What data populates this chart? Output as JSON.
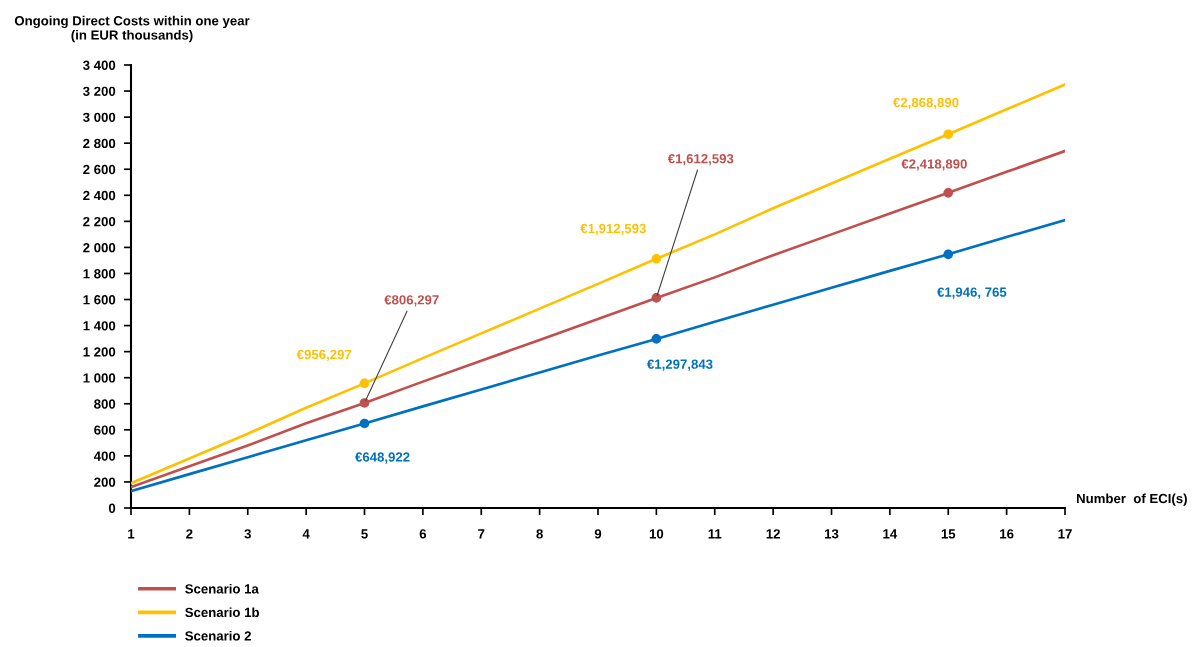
{
  "chart_data": {
    "type": "line",
    "ylabel": "Ongoing Direct Costs within one year\n(in EUR thousands)",
    "xlabel": "Number  of ECI(s)",
    "x": [
      1,
      2,
      3,
      4,
      5,
      6,
      7,
      8,
      9,
      10,
      11,
      12,
      13,
      14,
      15,
      16,
      17
    ],
    "xlim": [
      1,
      17
    ],
    "xticks": [
      1,
      2,
      3,
      4,
      5,
      6,
      7,
      8,
      9,
      10,
      11,
      12,
      13,
      14,
      15,
      16,
      17
    ],
    "ylim": [
      0,
      3400
    ],
    "yticks": [
      0,
      200,
      400,
      600,
      800,
      {
        "value": 1000,
        "label": "1 000"
      },
      {
        "value": 1200,
        "label": "1 200"
      },
      {
        "value": 1400,
        "label": "1 400"
      },
      {
        "value": 1600,
        "label": "1 600"
      },
      {
        "value": 1800,
        "label": "1 800"
      },
      {
        "value": 2000,
        "label": "2 000"
      },
      {
        "value": 2200,
        "label": "2 200"
      },
      {
        "value": 2400,
        "label": "2 400"
      },
      {
        "value": 2600,
        "label": "2 600"
      },
      {
        "value": 2800,
        "label": "2 800"
      },
      {
        "value": 3000,
        "label": "3 000"
      },
      {
        "value": 3200,
        "label": "3 200"
      },
      {
        "value": 3400,
        "label": "3 400"
      }
    ],
    "grid": false,
    "legend": "bottom left",
    "line_style": "solid",
    "series": [
      {
        "name": "Scenario 1a",
        "color": "#c0504d",
        "values": [
          160,
          320,
          480,
          650,
          806.297,
          970,
          1130,
          1290,
          1450,
          1612.593,
          1770,
          1940,
          2100,
          2260,
          2418.89,
          2580,
          2740
        ]
      },
      {
        "name": "Scenario 1b",
        "color": "#ffc000",
        "values": [
          190,
          380,
          570,
          770,
          956.297,
          1150,
          1340,
          1530,
          1720,
          1912.593,
          2100,
          2300,
          2490,
          2680,
          2868.89,
          3060,
          3250
        ]
      },
      {
        "name": "Scenario 2",
        "color": "#0070c0",
        "values": [
          130,
          260,
          390,
          520,
          648.922,
          780,
          910,
          1040,
          1170,
          1297.843,
          1430,
          1560,
          1690,
          1820,
          1946.765,
          2080,
          2210
        ]
      },
      {
        "type": "scatter",
        "marker": "circle",
        "color": "#c0504d",
        "x": [
          5,
          10,
          15
        ],
        "values": [
          806.297,
          1612.593,
          2418.89
        ]
      },
      {
        "type": "scatter",
        "marker": "circle",
        "color": "#ffc000",
        "x": [
          5,
          10,
          15
        ],
        "values": [
          956.297,
          1912.593,
          2868.89
        ]
      },
      {
        "type": "scatter",
        "marker": "circle",
        "color": "#0070c0",
        "x": [
          5,
          10,
          15
        ],
        "values": [
          648.922,
          1297.843,
          1946.765
        ]
      }
    ],
    "annotations": [
      {
        "text": "€806,297",
        "x": 5,
        "y": 806.297
      },
      {
        "text": "€1,612,593",
        "x": 10,
        "y": 1612.593
      },
      {
        "text": "€2,418,890",
        "x": 15,
        "y": 2418.89
      },
      {
        "text": "€956,297",
        "x": 5,
        "y": 956.297
      },
      {
        "text": "€1,912,593",
        "x": 10,
        "y": 1912.593
      },
      {
        "text": "€2,868,890",
        "x": 15,
        "y": 2868.89
      },
      {
        "text": "€648,922",
        "x": 5,
        "y": 648.922
      },
      {
        "text": "€1,297,843",
        "x": 10,
        "y": 1297.843
      },
      {
        "text": "€1,946, 765",
        "x": 15,
        "y": 1946.765
      }
    ]
  }
}
